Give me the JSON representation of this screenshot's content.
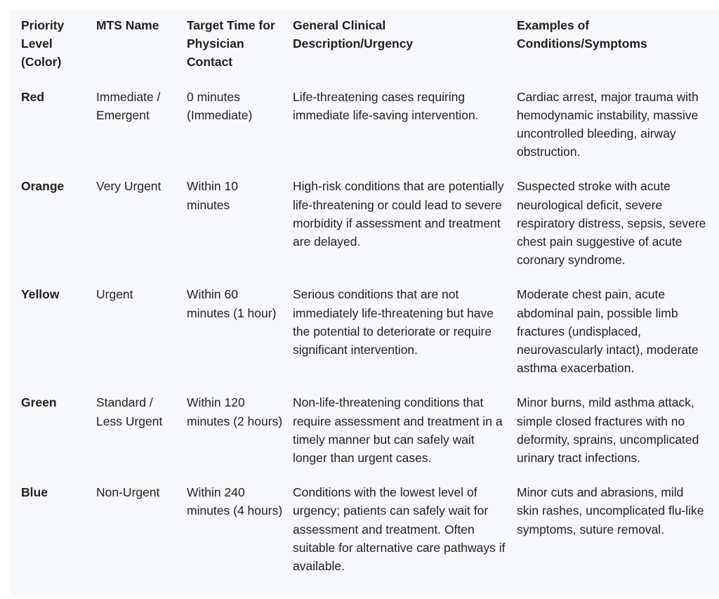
{
  "table": {
    "headers": [
      "Priority Level (Color)",
      "MTS Name",
      "Target Time for Physician Contact",
      "General Clinical Description/Urgency",
      "Examples of Conditions/Symptoms"
    ],
    "rows": [
      [
        "Red",
        "Immediate / Emergent",
        "0 minutes (Immediate)",
        "Life-threatening cases requiring immediate life-saving intervention.",
        "Cardiac arrest, major trauma with hemodynamic instability, massive uncontrolled bleeding, airway obstruction."
      ],
      [
        "Orange",
        "Very Urgent",
        "Within 10 minutes",
        "High-risk conditions that are potentially life-threatening or could lead to severe morbidity if assessment and treatment are delayed.",
        "Suspected stroke with acute neurological deficit, severe respiratory distress, sepsis, severe chest pain suggestive of acute coronary syndrome."
      ],
      [
        "Yellow",
        "Urgent",
        "Within 60 minutes (1 hour)",
        "Serious conditions that are not immediately life-threatening but have the potential to deteriorate or require significant intervention.",
        "Moderate chest pain, acute abdominal pain, possible limb fractures (undisplaced, neurovascularly intact), moderate asthma exacerbation."
      ],
      [
        "Green",
        "Standard / Less Urgent",
        "Within 120 minutes (2 hours)",
        "Non-life-threatening conditions that require assessment and treatment in a timely manner but can safely wait longer than urgent cases.",
        "Minor burns, mild asthma attack, simple closed fractures with no deformity, sprains, uncomplicated urinary tract infections."
      ],
      [
        "Blue",
        "Non-Urgent",
        "Within 240 minutes (4 hours)",
        "Conditions with the lowest level of urgency; patients can safely wait for assessment and treatment. Often suitable for alternative care pathways if available.",
        "Minor cuts and abrasions, mild skin rashes, uncomplicated flu-like symptoms, suture removal."
      ]
    ]
  }
}
